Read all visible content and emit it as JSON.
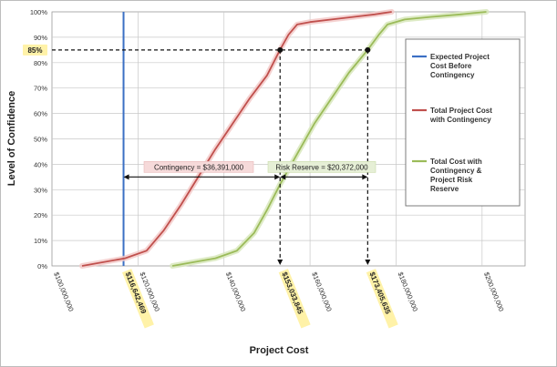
{
  "chart_data": {
    "type": "line",
    "title": "",
    "xlabel": "Project Cost",
    "ylabel": "Level of Confidence",
    "xlim": [
      100000000,
      210000000
    ],
    "ylim": [
      0,
      100
    ],
    "x_ticks": [
      {
        "value": 100000000,
        "label": "$100,000,000"
      },
      {
        "value": 120000000,
        "label": "$120,000,000"
      },
      {
        "value": 140000000,
        "label": "$140,000,000"
      },
      {
        "value": 160000000,
        "label": "$160,000,000"
      },
      {
        "value": 180000000,
        "label": "$180,000,000"
      },
      {
        "value": 200000000,
        "label": "$200,000,000"
      }
    ],
    "y_ticks": [
      "0%",
      "10%",
      "20%",
      "30%",
      "40%",
      "50%",
      "60%",
      "70%",
      "80%",
      "90%",
      "100%"
    ],
    "highlight_y": {
      "value": 85,
      "label": "85%"
    },
    "highlight_x": [
      {
        "value": 116642469,
        "label": "$116,642,469"
      },
      {
        "value": 153033845,
        "label": "$153,033,845"
      },
      {
        "value": 173405635,
        "label": "$173,405,635"
      }
    ],
    "grid": true,
    "legend_position": "right",
    "series": [
      {
        "name": "Expected Project Cost Before Contingency",
        "color": "#3b6fc4",
        "kind": "vertical",
        "x": 116642469
      },
      {
        "name": "Total Project Cost with Contingency",
        "color": "#c0504d",
        "x": [
          107000000,
          117000000,
          122000000,
          126000000,
          130000000,
          134000000,
          138000000,
          142000000,
          146000000,
          150000000,
          153000000,
          155000000,
          157000000,
          160000000,
          165000000,
          170000000,
          175000000,
          179000000
        ],
        "y": [
          0,
          3,
          6,
          14,
          24,
          35,
          46,
          56,
          66,
          75,
          85,
          91,
          95,
          96,
          97,
          98,
          99,
          100
        ]
      },
      {
        "name": "Total Cost with Contingency & Project Risk Reserve",
        "color": "#9bbb59",
        "x": [
          128000000,
          138000000,
          143000000,
          147000000,
          150000000,
          153000000,
          157000000,
          161000000,
          165000000,
          169000000,
          173400000,
          176000000,
          178000000,
          182000000,
          188000000,
          195000000,
          201000000
        ],
        "y": [
          0,
          3,
          6,
          13,
          22,
          32,
          44,
          56,
          66,
          76,
          85,
          91,
          95,
          97,
          98,
          99,
          100
        ]
      }
    ],
    "annotations": {
      "contingency": {
        "label": "Contingency = $36,391,000",
        "from": 116642469,
        "to": 153033845,
        "y": 35
      },
      "risk_reserve": {
        "label": "Risk Reserve = $20,372,000",
        "from": 153033845,
        "to": 173405635,
        "y": 35
      }
    }
  },
  "legend": {
    "items": [
      {
        "line1": "Expected Project",
        "line2": "Cost Before",
        "line3": "Contingency",
        "color": "#3b6fc4"
      },
      {
        "line1": "Total Project Cost",
        "line2": "with Contingency",
        "line3": "",
        "color": "#c0504d"
      },
      {
        "line1": "Total Cost with",
        "line2": "Contingency &",
        "line3": "Project Risk",
        "line4": "Reserve",
        "color": "#9bbb59"
      }
    ]
  }
}
